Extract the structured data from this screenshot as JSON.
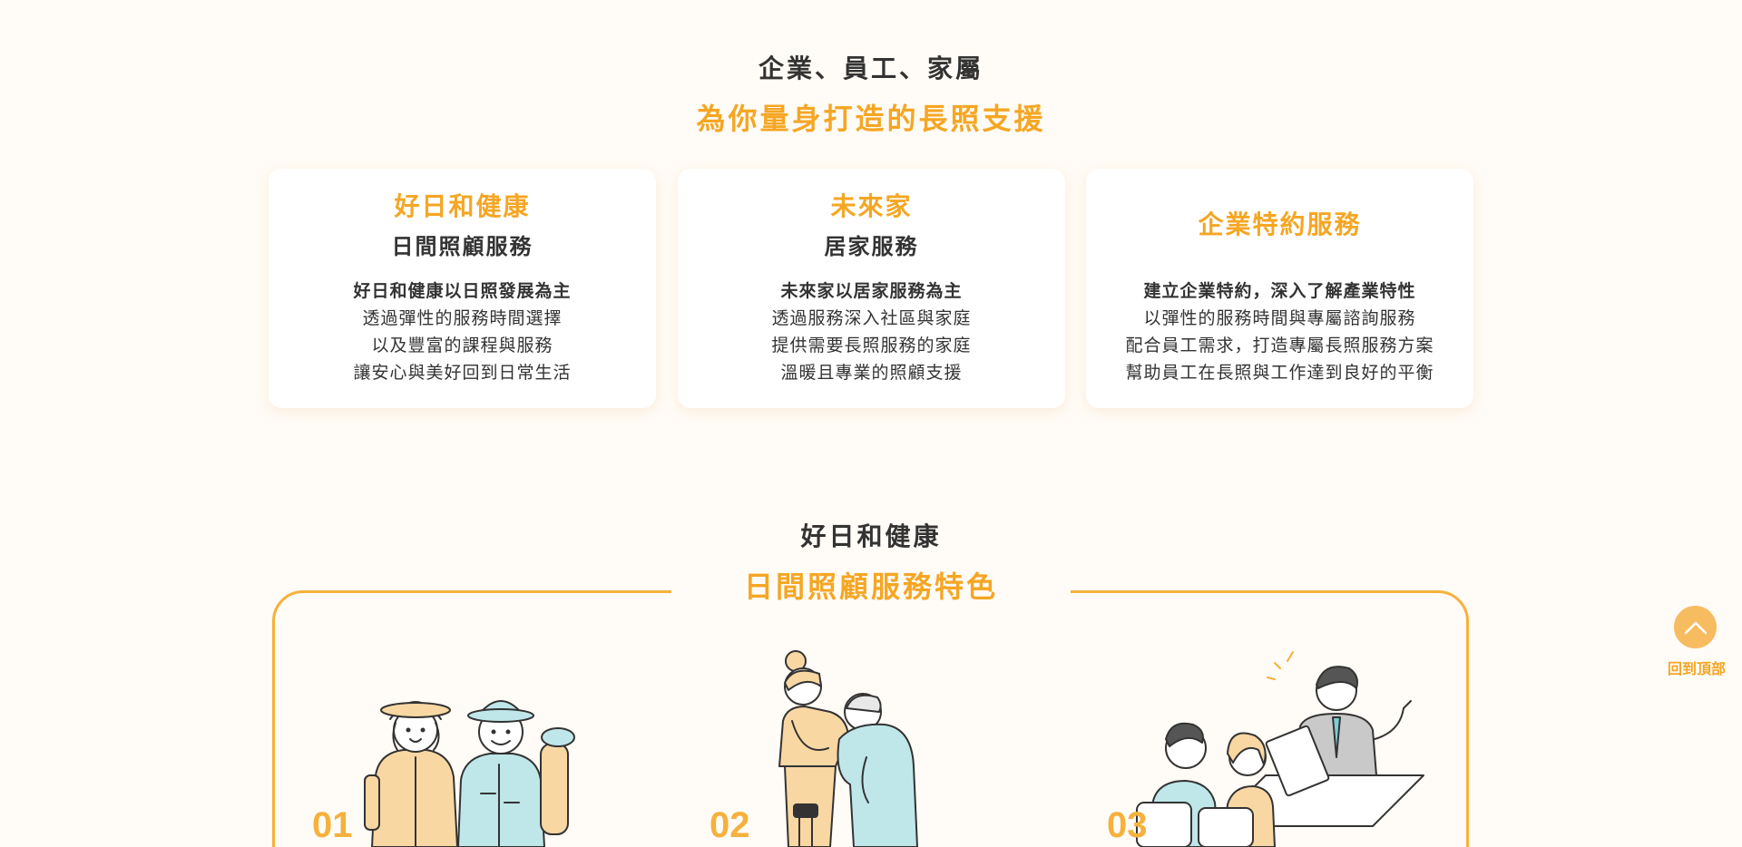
{
  "intro": {
    "title": "企業、員工、家屬",
    "subtitle": "為你量身打造的長照支援"
  },
  "cards": [
    {
      "brand": "好日和健康",
      "service": "日間照顧服務",
      "lead": "好日和健康以日照發展為主",
      "lines": [
        "透過彈性的服務時間選擇",
        "以及豐富的課程與服務",
        "讓安心與美好回到日常生活"
      ]
    },
    {
      "brand": "未來家",
      "service": "居家服務",
      "lead": "未來家以居家服務為主",
      "lines": [
        "透過服務深入社區與家庭",
        "提供需要長照服務的家庭",
        "溫暖且專業的照顧支援"
      ]
    },
    {
      "brand": "企業特約服務",
      "service": "",
      "lead": "建立企業特約，深入了解產業特性",
      "lines": [
        "以彈性的服務時間與專屬諮詢服務",
        "配合員工需求，打造專屬長照服務方案",
        "幫助員工在長照與工作達到良好的平衡"
      ]
    }
  ],
  "features": {
    "title": "好日和健康",
    "subtitle": "日間照顧服務特色",
    "items": [
      {
        "number": "01",
        "icon": "elderly-couple-hiking-illustration"
      },
      {
        "number": "02",
        "icon": "caregiver-assisting-elder-illustration"
      },
      {
        "number": "03",
        "icon": "business-consultation-illustration"
      }
    ]
  },
  "back_to_top": {
    "label": "回到頂部",
    "icon": "chevron-up-icon"
  },
  "colors": {
    "accent": "#f5a623",
    "frame": "#f5b13c",
    "background": "#fffbf6",
    "text": "#333333",
    "illus_orange": "#f9d7a3",
    "illus_teal": "#bfe7ea"
  }
}
